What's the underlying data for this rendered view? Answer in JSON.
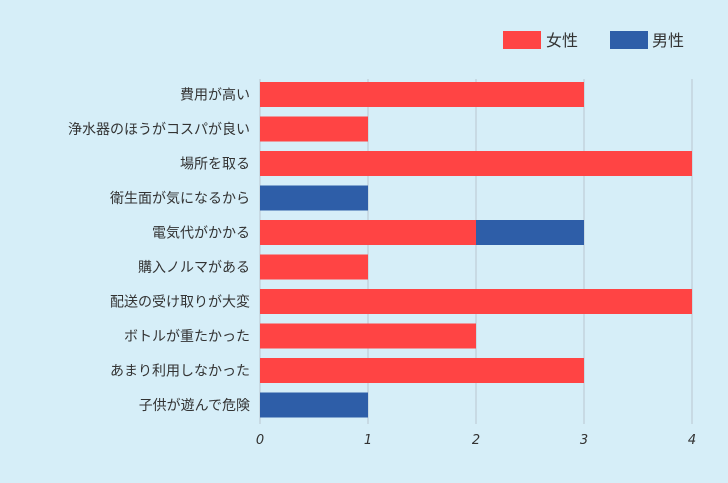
{
  "chart_data": {
    "type": "bar",
    "orientation": "horizontal",
    "stacked": true,
    "categories": [
      "費用が高い",
      "浄水器のほうがコスパが良い",
      "場所を取る",
      "衛生面が気になるから",
      "電気代がかかる",
      "購入ノルマがある",
      "配送の受け取りが大変",
      "ボトルが重たかった",
      "あまり利用しなかった",
      "子供が遊んで危険"
    ],
    "series": [
      {
        "name": "女性",
        "color": "#ff4444",
        "values": [
          3,
          1,
          4,
          0,
          2,
          1,
          4,
          2,
          3,
          0
        ]
      },
      {
        "name": "男性",
        "color": "#2e5ea8",
        "values": [
          0,
          0,
          0,
          1,
          1,
          0,
          0,
          0,
          0,
          1
        ]
      }
    ],
    "xlim": [
      0,
      4
    ],
    "xticks": [
      "0",
      "1",
      "2",
      "3",
      "4"
    ],
    "grid": true,
    "legend_position": "top-right"
  }
}
